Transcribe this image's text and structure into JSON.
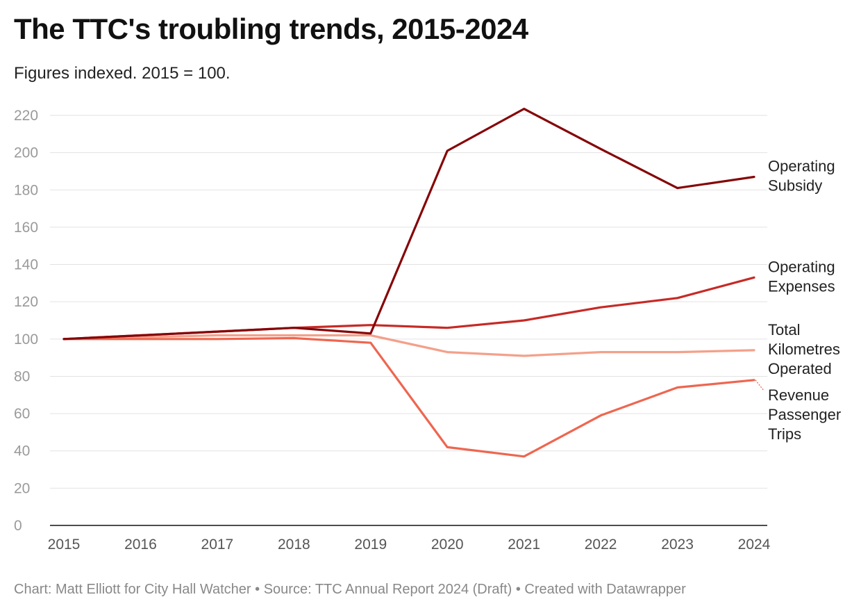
{
  "title": "The TTC's troubling trends, 2015-2024",
  "subtitle": "Figures indexed. 2015 = 100.",
  "footer": {
    "credit": "Chart: Matt Elliott for City Hall Watcher",
    "separator": "•",
    "source": "Source: TTC Annual Report 2024 (Draft)",
    "created": "Created with Datawrapper"
  },
  "chart_data": {
    "type": "line",
    "x": [
      2015,
      2016,
      2017,
      2018,
      2019,
      2020,
      2021,
      2022,
      2023,
      2024
    ],
    "ylim": [
      0,
      220
    ],
    "yticks": [
      0,
      20,
      40,
      60,
      80,
      100,
      120,
      140,
      160,
      180,
      200,
      220
    ],
    "grid": true,
    "legend": "direct-labels-right",
    "series": [
      {
        "name": "Total Kilometres Operated",
        "label_lines": [
          "Total",
          "Kilometres",
          "Operated"
        ],
        "color": "#f4a08a",
        "values": [
          100,
          101,
          102,
          102,
          102,
          93,
          91,
          93,
          93,
          94
        ]
      },
      {
        "name": "Revenue Passenger Trips",
        "label_lines": [
          "Revenue",
          "Passenger",
          "Trips"
        ],
        "color": "#ee6650",
        "values": [
          100,
          100,
          100,
          100.5,
          98,
          42,
          37,
          59,
          74,
          78
        ]
      },
      {
        "name": "Operating Expenses",
        "label_lines": [
          "Operating",
          "Expenses"
        ],
        "color": "#c62a26",
        "values": [
          100,
          102,
          104,
          106,
          107.5,
          106,
          110,
          117,
          122,
          133
        ]
      },
      {
        "name": "Operating Subsidy",
        "label_lines": [
          "Operating",
          "Subsidy"
        ],
        "color": "#850507",
        "values": [
          100,
          102,
          104,
          106,
          103,
          201,
          223.5,
          202,
          181,
          187
        ]
      }
    ]
  }
}
